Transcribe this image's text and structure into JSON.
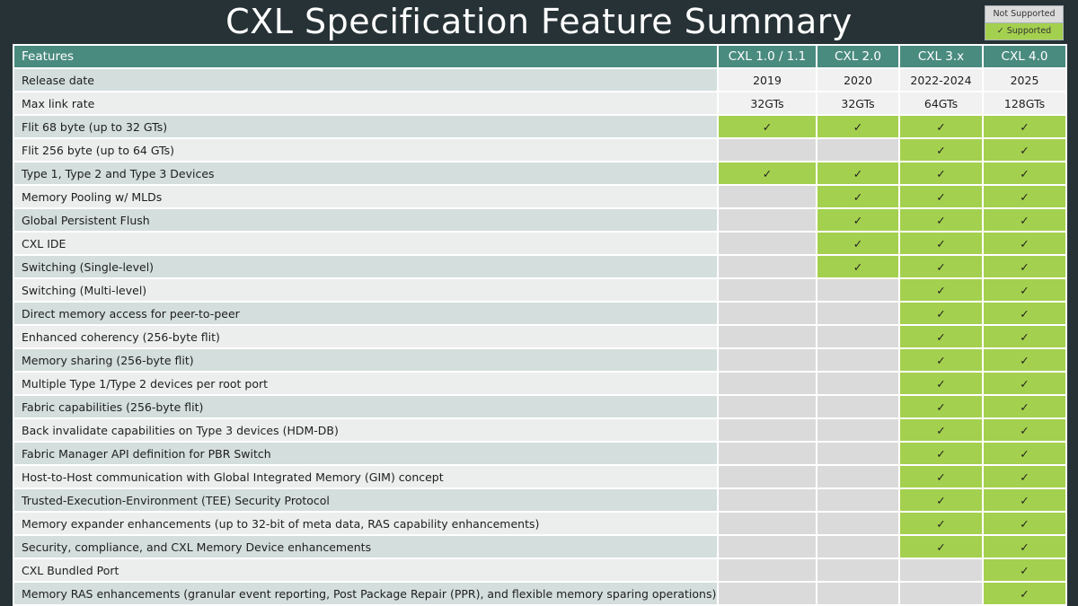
{
  "title": "CXL Specification Feature Summary",
  "legend": {
    "not_supported": "Not Supported",
    "supported": "✓   Supported"
  },
  "colors": {
    "supported": "#a4d04f",
    "not_supported": "#dadada",
    "header": "#4a8b80",
    "background": "#263236"
  },
  "check_symbol": "✓",
  "table": {
    "headers": [
      "Features",
      "CXL 1.0 / 1.1",
      "CXL 2.0",
      "CXL 3.x",
      "CXL 4.0"
    ],
    "info_rows": [
      {
        "label": "Release date",
        "values": [
          "2019",
          "2020",
          "2022-2024",
          "2025"
        ]
      },
      {
        "label": "Max link rate",
        "values": [
          "32GTs",
          "32GTs",
          "64GTs",
          "128GTs"
        ]
      }
    ],
    "feature_rows": [
      {
        "label": "Flit 68 byte (up to 32 GTs)",
        "support": [
          true,
          true,
          true,
          true
        ]
      },
      {
        "label": "Flit 256 byte (up to 64 GTs)",
        "support": [
          false,
          false,
          true,
          true
        ]
      },
      {
        "label": "Type 1, Type 2 and Type 3 Devices",
        "support": [
          true,
          true,
          true,
          true
        ]
      },
      {
        "label": "Memory Pooling w/ MLDs",
        "support": [
          false,
          true,
          true,
          true
        ]
      },
      {
        "label": "Global Persistent Flush",
        "support": [
          false,
          true,
          true,
          true
        ]
      },
      {
        "label": "CXL IDE",
        "support": [
          false,
          true,
          true,
          true
        ]
      },
      {
        "label": "Switching (Single-level)",
        "support": [
          false,
          true,
          true,
          true
        ]
      },
      {
        "label": "Switching (Multi-level)",
        "support": [
          false,
          false,
          true,
          true
        ]
      },
      {
        "label": "Direct memory access for peer-to-peer",
        "support": [
          false,
          false,
          true,
          true
        ]
      },
      {
        "label": "Enhanced coherency (256-byte flit)",
        "support": [
          false,
          false,
          true,
          true
        ]
      },
      {
        "label": "Memory sharing (256-byte flit)",
        "support": [
          false,
          false,
          true,
          true
        ]
      },
      {
        "label": "Multiple Type 1/Type 2 devices per root port",
        "support": [
          false,
          false,
          true,
          true
        ]
      },
      {
        "label": "Fabric capabilities (256-byte flit)",
        "support": [
          false,
          false,
          true,
          true
        ]
      },
      {
        "label": "Back invalidate capabilities on Type 3 devices (HDM-DB)",
        "support": [
          false,
          false,
          true,
          true
        ]
      },
      {
        "label": "Fabric Manager API definition for PBR Switch",
        "support": [
          false,
          false,
          true,
          true
        ]
      },
      {
        "label": "Host-to-Host communication with Global Integrated Memory (GIM) concept",
        "support": [
          false,
          false,
          true,
          true
        ]
      },
      {
        "label": "Trusted-Execution-Environment (TEE) Security Protocol",
        "support": [
          false,
          false,
          true,
          true
        ]
      },
      {
        "label": "Memory expander enhancements (up to 32-bit of meta data, RAS capability enhancements)",
        "support": [
          false,
          false,
          true,
          true
        ]
      },
      {
        "label": "Security, compliance, and CXL Memory Device enhancements",
        "support": [
          false,
          false,
          true,
          true
        ]
      },
      {
        "label": "CXL Bundled Port",
        "support": [
          false,
          false,
          false,
          true
        ]
      },
      {
        "label": "Memory RAS enhancements (granular event reporting, Post Package Repair (PPR), and flexible memory sparing operations)",
        "support": [
          false,
          false,
          false,
          true
        ]
      }
    ]
  }
}
